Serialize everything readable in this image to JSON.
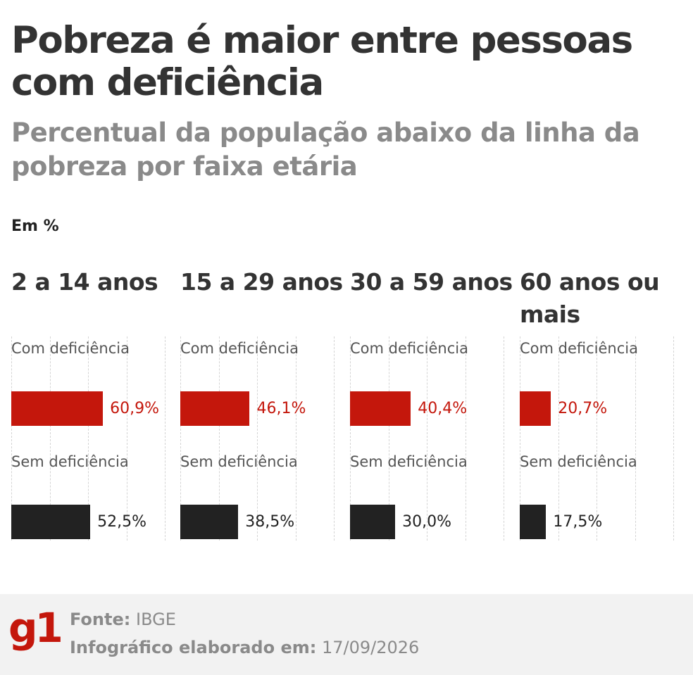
{
  "title": "Pobreza é maior entre pessoas com deficiência",
  "subtitle": "Percentual da população abaixo da linha da pobreza por faixa etária",
  "unit": "Em %",
  "chart_data": {
    "type": "bar",
    "title": "Pobreza é maior entre pessoas com deficiência",
    "subtitle": "Percentual da população abaixo da linha da pobreza por faixa etária",
    "ylabel": "Em %",
    "categories": [
      "2 a 14 anos",
      "15 a 29 anos",
      "30 a 59 anos",
      "60 anos ou mais"
    ],
    "series": [
      {
        "name": "Com deficiência",
        "values": [
          60.9,
          46.1,
          40.4,
          20.7
        ],
        "color": "#c4170c"
      },
      {
        "name": "Sem deficiência",
        "values": [
          52.5,
          38.5,
          30.0,
          17.5
        ],
        "color": "#222222"
      }
    ],
    "value_labels": {
      "com": [
        "60,9%",
        "46,1%",
        "40,4%",
        "20,7%"
      ],
      "sem": [
        "52,5%",
        "38,5%",
        "30,0%",
        "17,5%"
      ]
    },
    "grid": true
  },
  "panels": [
    {
      "age": "2 a 14 anos",
      "com_label": "Com deficiência",
      "sem_label": "Sem deficiência"
    },
    {
      "age": "15 a 29 anos",
      "com_label": "Com deficiência",
      "sem_label": "Sem deficiência"
    },
    {
      "age": "30 a 59 anos",
      "com_label": "Com deficiência",
      "sem_label": "Sem deficiência"
    },
    {
      "age": "60 anos ou mais",
      "com_label": "Com deficiência",
      "sem_label": "Sem deficiência"
    }
  ],
  "footer": {
    "logo": "g1",
    "source_label": "Fonte:",
    "source_value": "IBGE",
    "made_label": "Infográfico elaborado em:",
    "made_value": "17/09/2026"
  }
}
